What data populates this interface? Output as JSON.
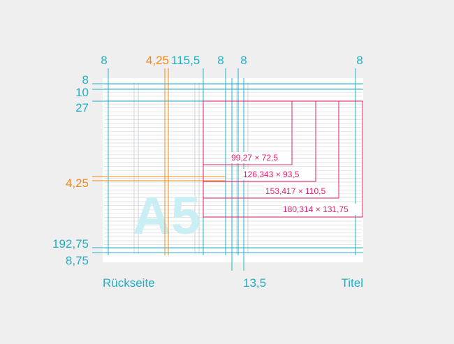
{
  "colors": {
    "background": "#efefef",
    "sheet": "#ffffff",
    "rule_line": "#cfd3d6",
    "cyan": "#1fb0c8",
    "orange": "#f08a1c",
    "magenta": "#e0206c",
    "watermark": "#c9eef4"
  },
  "watermark": "A5",
  "top_measures": [
    {
      "text": "8",
      "color": "cyan"
    },
    {
      "text": "4,25",
      "color": "orange"
    },
    {
      "text": "115,5",
      "color": "cyan"
    },
    {
      "text": "8",
      "color": "cyan"
    },
    {
      "text": "8",
      "color": "cyan"
    },
    {
      "text": "8",
      "color": "cyan"
    }
  ],
  "left_measures": [
    {
      "text": "8",
      "color": "cyan"
    },
    {
      "text": "10",
      "color": "cyan"
    },
    {
      "text": "27",
      "color": "cyan"
    },
    {
      "text": "4,25",
      "color": "orange"
    },
    {
      "text": "192,75",
      "color": "cyan"
    },
    {
      "text": "8,75",
      "color": "cyan"
    }
  ],
  "bottom_labels": {
    "back": "Rückseite",
    "spine": "13,5",
    "front": "Titel"
  },
  "formats": [
    {
      "label": "99,27 × 72,5"
    },
    {
      "label": "126,343 × 93,5"
    },
    {
      "label": "153,417 × 110,5"
    },
    {
      "label": "180,314 × 131,75"
    }
  ]
}
